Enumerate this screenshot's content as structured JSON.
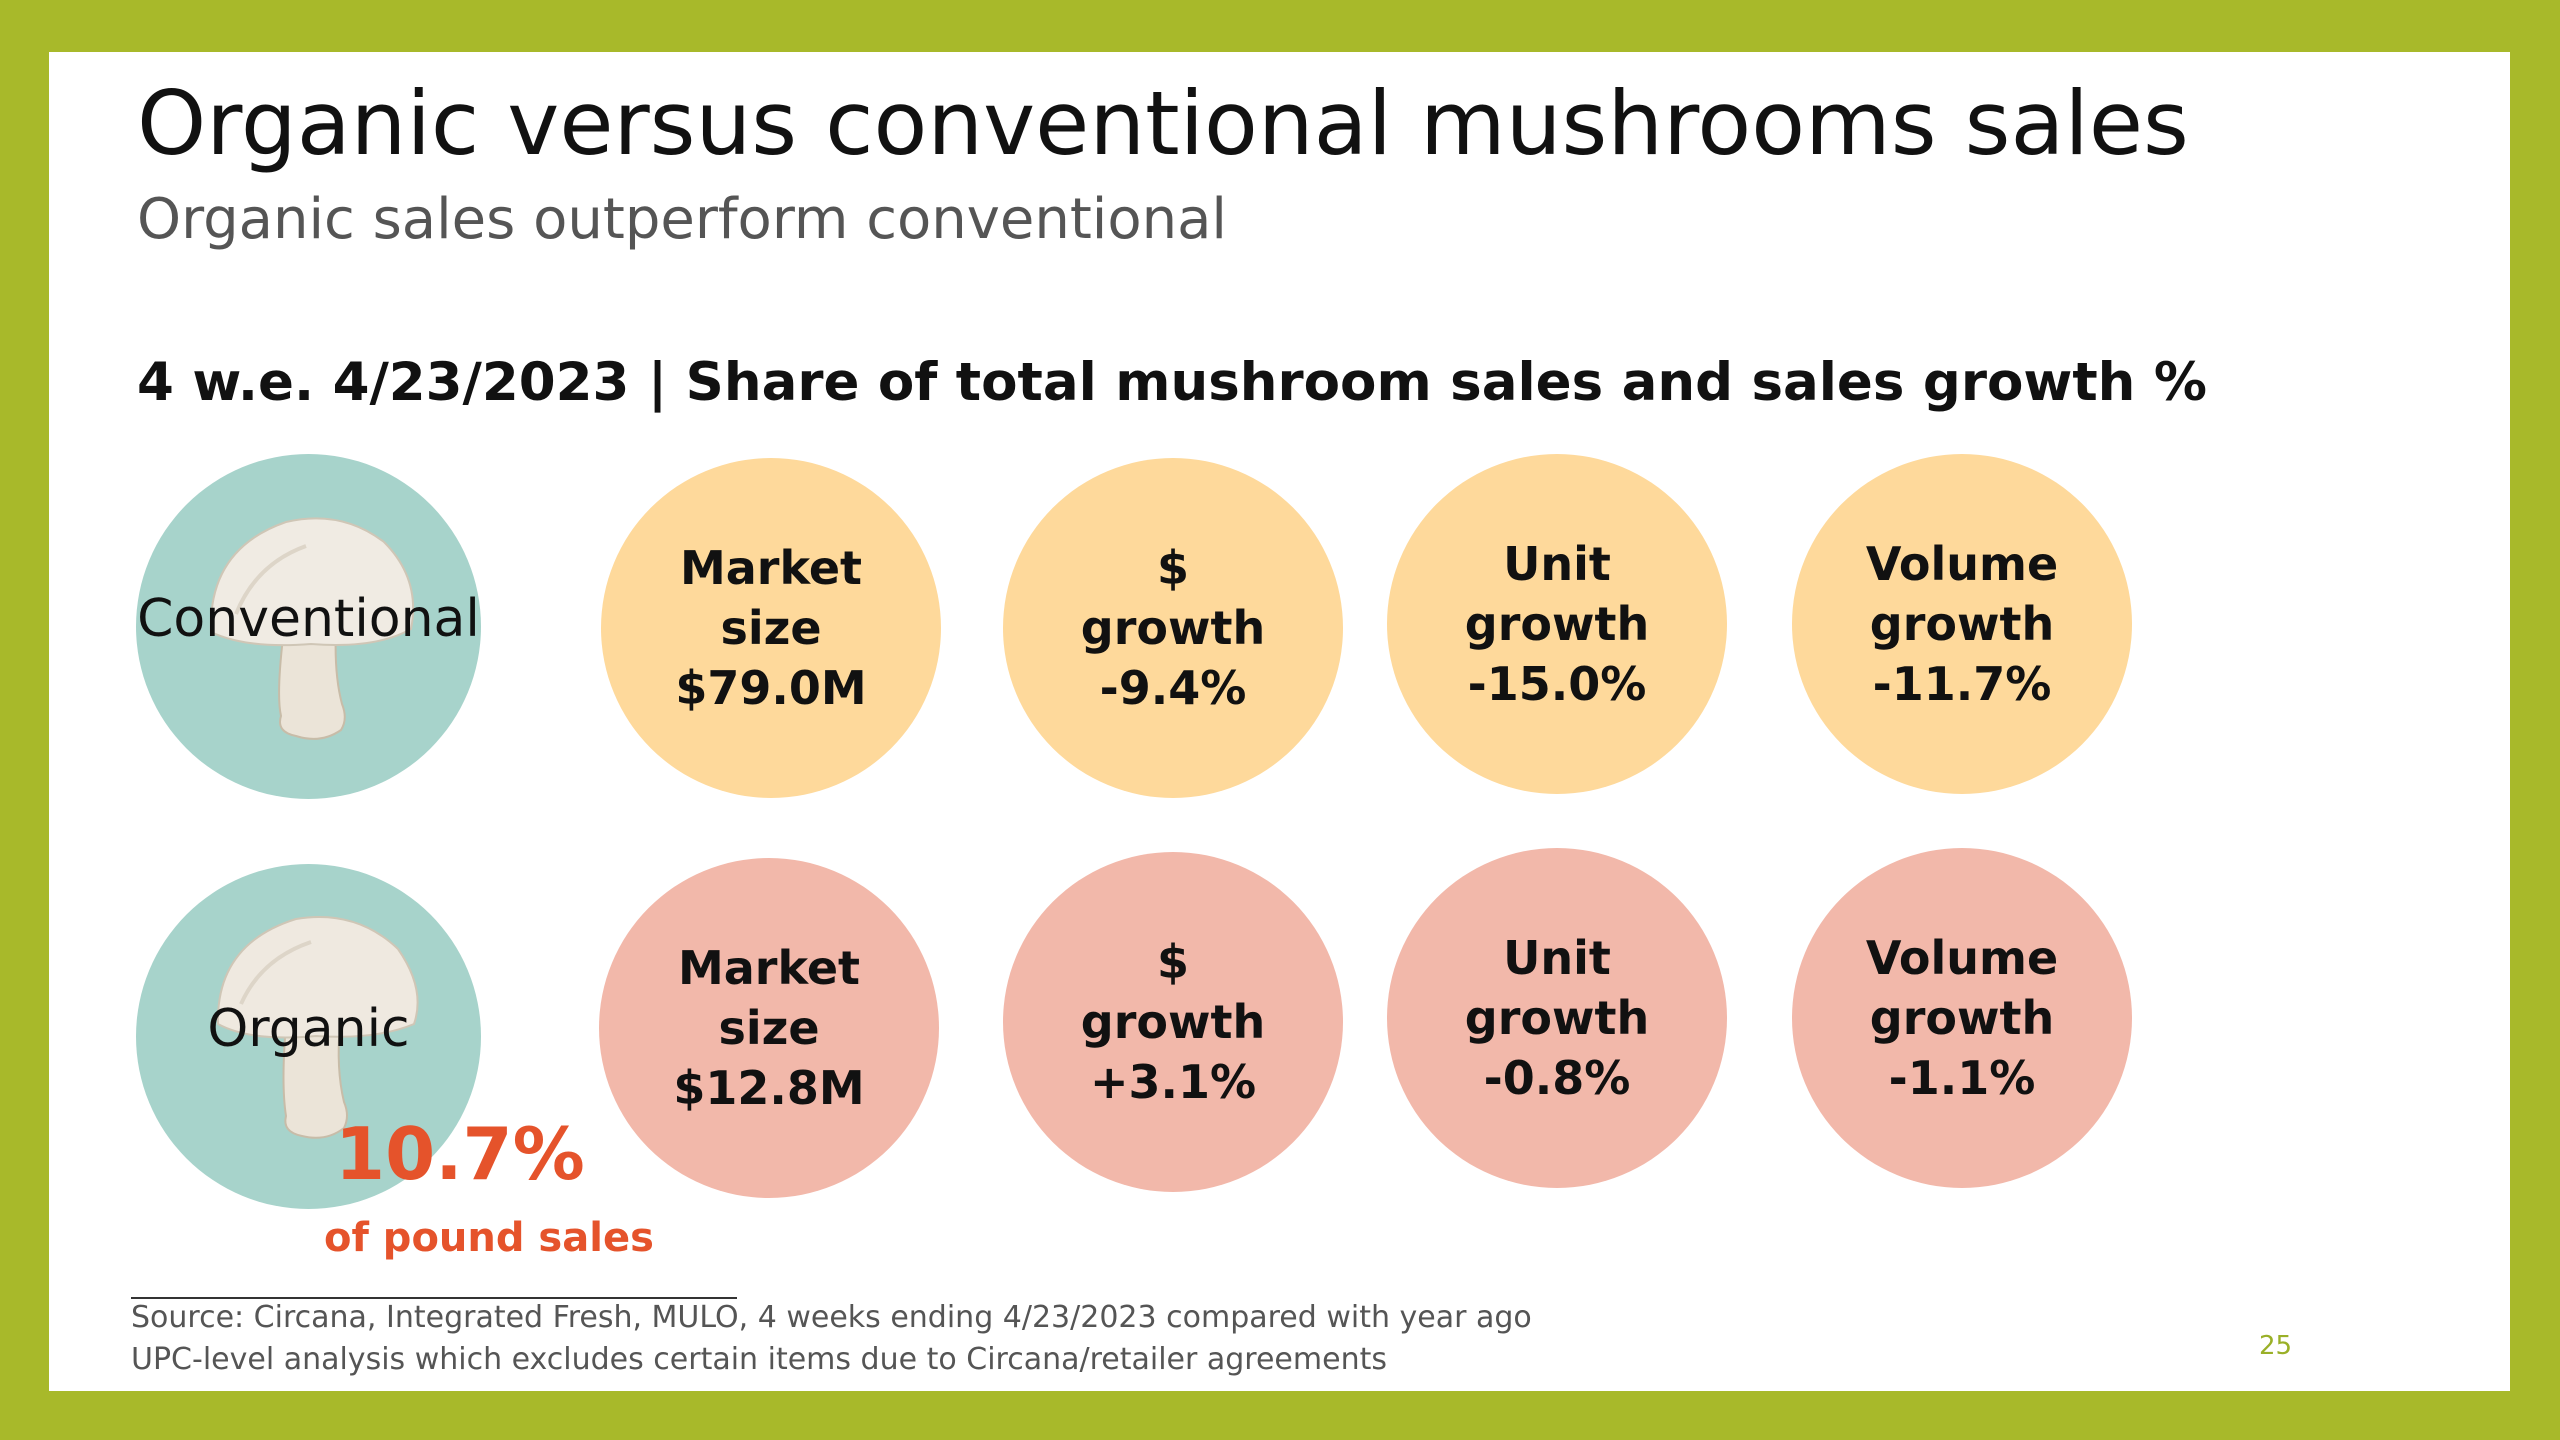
{
  "title": "Organic versus conventional mushrooms sales",
  "subtitle": "Organic sales outperform conventional",
  "section_header": "4 w.e. 4/23/2023 | Share of total mushroom sales and sales growth %",
  "colors": {
    "frame": "#a8b92a",
    "category_circle": "#a7d3cb",
    "conventional_metric": "#fed99b",
    "organic_metric": "#f2b8aa",
    "highlight": "#e5532b"
  },
  "conventional": {
    "label": "Conventional",
    "icon": "mushroom-icon",
    "metrics": [
      {
        "line1": "Market",
        "line2": "size",
        "value": "$79.0M"
      },
      {
        "line1": "$",
        "line2": "growth",
        "value": "-9.4%"
      },
      {
        "line1": "Unit",
        "line2": "growth",
        "value": "-15.0%"
      },
      {
        "line1": "Volume",
        "line2": "growth",
        "value": "-11.7%"
      }
    ]
  },
  "organic": {
    "label": "Organic",
    "icon": "mushroom-icon",
    "metrics": [
      {
        "line1": "Market",
        "line2": "size",
        "value": "$12.8M"
      },
      {
        "line1": "$",
        "line2": "growth",
        "value": "+3.1%"
      },
      {
        "line1": "Unit",
        "line2": "growth",
        "value": "-0.8%"
      },
      {
        "line1": "Volume",
        "line2": "growth",
        "value": "-1.1%"
      }
    ],
    "share_value": "10.7%",
    "share_label": "of pound sales"
  },
  "footnotes": [
    "Source: Circana, Integrated Fresh, MULO, 4 weeks ending 4/23/2023 compared with year ago",
    "UPC-level analysis which excludes certain items due to Circana/retailer agreements"
  ],
  "page_number": "25"
}
